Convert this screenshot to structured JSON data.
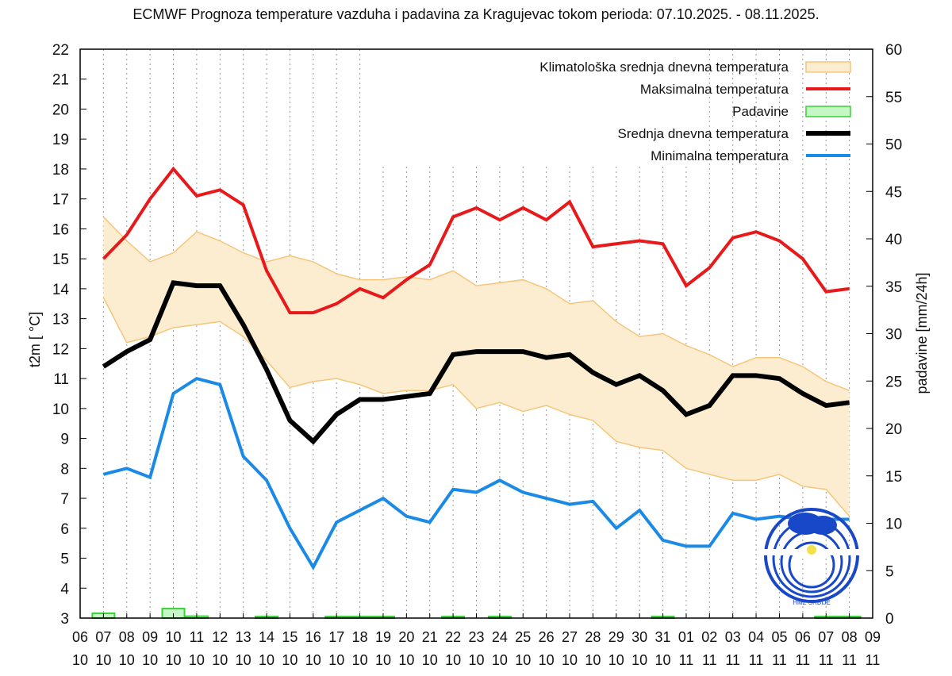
{
  "chart_data": {
    "type": "line",
    "title": "ECMWF Prognoza temperature vazduha i padavina za Kragujevac tokom perioda: 07.10.2025. - 08.11.2025.",
    "ylabel": "t2m [ °C]",
    "y2label": "padavine [mm/24h]",
    "ylim": [
      3,
      22
    ],
    "y2lim": [
      0,
      60
    ],
    "grid": "vertical dotted",
    "legend_position": "top-right",
    "x_dates": [
      "06\n10",
      "07\n10",
      "08\n10",
      "09\n10",
      "10\n10",
      "11\n10",
      "12\n10",
      "13\n10",
      "14\n10",
      "15\n10",
      "16\n10",
      "17\n10",
      "18\n10",
      "19\n10",
      "20\n10",
      "21\n10",
      "22\n10",
      "23\n10",
      "24\n10",
      "25\n10",
      "26\n10",
      "27\n10",
      "28\n10",
      "29\n10",
      "30\n10",
      "31\n10",
      "01\n11",
      "02\n11",
      "03\n11",
      "04\n11",
      "05\n11",
      "06\n11",
      "07\n11",
      "08\n11",
      "09\n11"
    ],
    "x_day": [
      "06",
      "07",
      "08",
      "09",
      "10",
      "11",
      "12",
      "13",
      "14",
      "15",
      "16",
      "17",
      "18",
      "19",
      "20",
      "21",
      "22",
      "23",
      "24",
      "25",
      "26",
      "27",
      "28",
      "29",
      "30",
      "31",
      "01",
      "02",
      "03",
      "04",
      "05",
      "06",
      "07",
      "08",
      "09"
    ],
    "x_month": [
      "10",
      "10",
      "10",
      "10",
      "10",
      "10",
      "10",
      "10",
      "10",
      "10",
      "10",
      "10",
      "10",
      "10",
      "10",
      "10",
      "10",
      "10",
      "10",
      "10",
      "10",
      "10",
      "10",
      "10",
      "10",
      "10",
      "11",
      "11",
      "11",
      "11",
      "11",
      "11",
      "11",
      "11",
      "11"
    ],
    "yticks": [
      "3",
      "4",
      "5",
      "6",
      "7",
      "8",
      "9",
      "10",
      "11",
      "12",
      "13",
      "14",
      "15",
      "16",
      "17",
      "18",
      "19",
      "20",
      "21",
      "22"
    ],
    "y2ticks": [
      "0",
      "5",
      "10",
      "15",
      "20",
      "25",
      "30",
      "35",
      "40",
      "45",
      "50",
      "55",
      "60"
    ],
    "series": [
      {
        "name": "Klimatološka srednja dnevna temperatura",
        "kind": "band",
        "color": "#f5c57a",
        "fill": "#fdedd0",
        "upper": [
          16.4,
          15.6,
          14.9,
          15.2,
          15.9,
          15.6,
          15.2,
          14.9,
          15.1,
          14.9,
          14.5,
          14.3,
          14.3,
          14.4,
          14.3,
          14.6,
          14.1,
          14.2,
          14.3,
          14.0,
          13.5,
          13.6,
          12.9,
          12.4,
          12.5,
          12.1,
          11.8,
          11.4,
          11.7,
          11.7,
          11.4,
          10.9,
          10.6
        ],
        "lower": [
          13.7,
          12.2,
          12.4,
          12.7,
          12.8,
          12.9,
          12.4,
          11.6,
          10.7,
          10.9,
          11.0,
          10.8,
          10.5,
          10.6,
          10.6,
          10.8,
          10.0,
          10.2,
          9.9,
          10.1,
          9.8,
          9.6,
          8.9,
          8.7,
          8.6,
          8.0,
          7.8,
          7.6,
          7.6,
          7.8,
          7.4,
          7.3,
          6.4
        ]
      },
      {
        "name": "Maksimalna temperatura",
        "color": "#e8191b",
        "values": [
          15.0,
          15.8,
          17.0,
          18.0,
          17.1,
          17.3,
          16.8,
          14.6,
          13.2,
          13.2,
          13.5,
          14.0,
          13.7,
          14.3,
          14.8,
          16.4,
          16.7,
          16.3,
          16.7,
          16.3,
          16.9,
          15.4,
          15.5,
          15.6,
          15.5,
          14.1,
          14.7,
          15.7,
          15.9,
          15.6,
          15.0,
          13.9,
          14.0
        ]
      },
      {
        "name": "Padavine",
        "kind": "bars",
        "color": "#3ad13a",
        "fill": "#c6f5c6",
        "values": [
          0.5,
          0,
          0,
          1.0,
          0.2,
          0,
          0,
          0.1,
          0,
          0,
          0.1,
          0.1,
          0.1,
          0,
          0,
          0.1,
          0,
          0.1,
          0,
          0,
          0,
          0,
          0,
          0,
          0.1,
          0,
          0,
          0,
          0,
          0,
          0,
          0.1,
          0.1
        ]
      },
      {
        "name": "Srednja dnevna temperatura",
        "color": "#000000",
        "values": [
          11.4,
          11.9,
          12.3,
          14.2,
          14.1,
          14.1,
          12.8,
          11.3,
          9.6,
          8.9,
          9.8,
          10.3,
          10.3,
          10.4,
          10.5,
          11.8,
          11.9,
          11.9,
          11.9,
          11.7,
          11.8,
          11.2,
          10.8,
          11.1,
          10.6,
          9.8,
          10.1,
          11.1,
          11.1,
          11.0,
          10.5,
          10.1,
          10.2
        ]
      },
      {
        "name": "Minimalna temperatura",
        "color": "#1a8ae6",
        "values": [
          7.8,
          8.0,
          7.7,
          10.5,
          11.0,
          10.8,
          8.4,
          7.6,
          6.0,
          4.7,
          6.2,
          6.6,
          7.0,
          6.4,
          6.2,
          7.3,
          7.2,
          7.6,
          7.2,
          7.0,
          6.8,
          6.9,
          6.0,
          6.6,
          5.6,
          5.4,
          5.4,
          6.5,
          6.3,
          6.4,
          6.3,
          6.3,
          6.3
        ]
      }
    ],
    "logo_text": "HMZ SRBIJE"
  }
}
